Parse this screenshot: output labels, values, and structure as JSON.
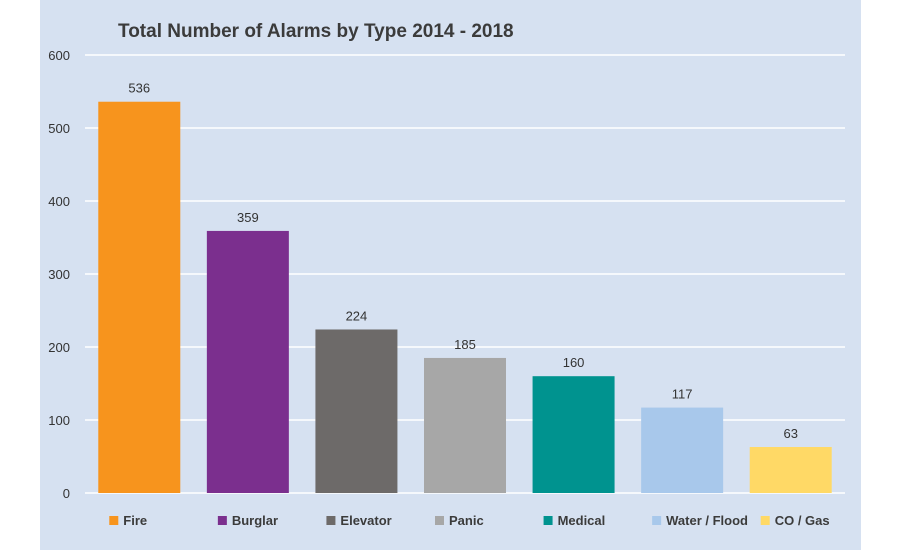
{
  "chart_data": {
    "type": "bar",
    "title": "Total Number of Alarms by Type 2014 - 2018",
    "xlabel": "",
    "ylabel": "",
    "ylim": [
      0,
      600
    ],
    "yticks": [
      0,
      100,
      200,
      300,
      400,
      500,
      600
    ],
    "grid": true,
    "legend": "bottom",
    "categories": [
      "Fire",
      "Burglar",
      "Elevator",
      "Panic",
      "Medical",
      "Water / Flood",
      "CO / Gas"
    ],
    "values": [
      536,
      359,
      224,
      185,
      160,
      117,
      63
    ],
    "colors": [
      "#f7941d",
      "#7b2f8e",
      "#6d6a69",
      "#a7a7a7",
      "#00938f",
      "#a8c8eb",
      "#ffd966"
    ],
    "data_labels": [
      "536",
      "359",
      "224",
      "185",
      "160",
      "117",
      "63"
    ]
  }
}
